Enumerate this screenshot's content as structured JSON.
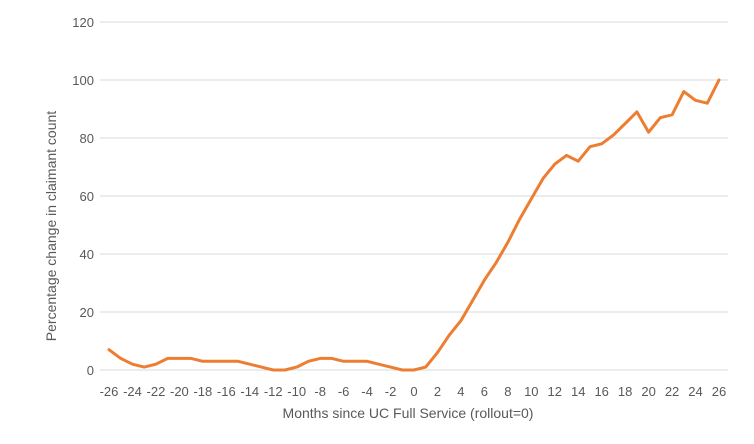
{
  "chart_data": {
    "type": "line",
    "title": "",
    "xlabel": "Months since UC Full Service (rollout=0)",
    "ylabel": "Percentage change in claimant count",
    "xlim": [
      -26,
      26
    ],
    "ylim": [
      0,
      120
    ],
    "x_ticks": [
      -26,
      -24,
      -22,
      -20,
      -18,
      -16,
      -14,
      -12,
      -10,
      -8,
      -6,
      -4,
      -2,
      0,
      2,
      4,
      6,
      8,
      10,
      12,
      14,
      16,
      18,
      20,
      22,
      24,
      26
    ],
    "y_ticks": [
      0,
      20,
      40,
      60,
      80,
      100,
      120
    ],
    "grid": true,
    "legend": "none",
    "series": [
      {
        "color": "#ed7d31",
        "x": [
          -26,
          -25,
          -24,
          -23,
          -22,
          -21,
          -20,
          -19,
          -18,
          -17,
          -16,
          -15,
          -14,
          -13,
          -12,
          -11,
          -10,
          -9,
          -8,
          -7,
          -6,
          -5,
          -4,
          -3,
          -2,
          -1,
          0,
          1,
          2,
          3,
          4,
          5,
          6,
          7,
          8,
          9,
          10,
          11,
          12,
          13,
          14,
          15,
          16,
          17,
          18,
          19,
          20,
          21,
          22,
          23,
          24,
          25,
          26
        ],
        "y": [
          7,
          4,
          2,
          1,
          2,
          4,
          4,
          4,
          3,
          3,
          3,
          3,
          2,
          1,
          0,
          0,
          1,
          3,
          4,
          4,
          3,
          3,
          3,
          2,
          1,
          0,
          0,
          1,
          6,
          12,
          17,
          24,
          31,
          37,
          44,
          52,
          59,
          66,
          71,
          74,
          72,
          77,
          78,
          81,
          85,
          89,
          82,
          87,
          88,
          96,
          93,
          92,
          100
        ]
      }
    ]
  }
}
